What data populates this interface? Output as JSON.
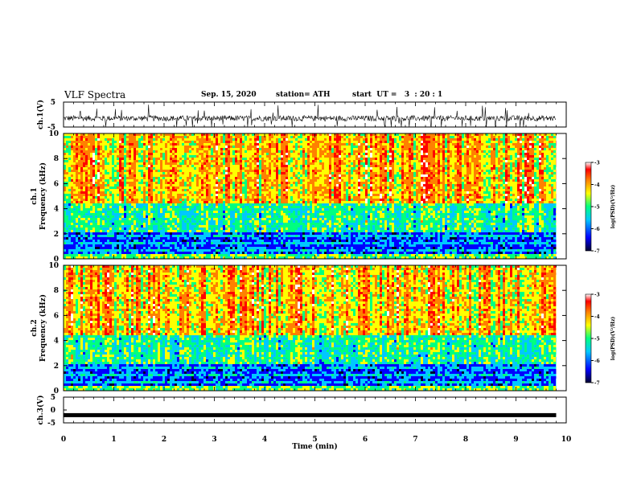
{
  "header": {
    "title": "VLF Spectra",
    "date": "Sep. 15, 2020",
    "station": "station= ATH",
    "start": "start  UT =   3  : 20 : 1"
  },
  "colors": {
    "palette": [
      "#00002e",
      "#0000ff",
      "#00c8ff",
      "#00ff80",
      "#ffff00",
      "#ff8000",
      "#ff0000",
      "#ffffff"
    ],
    "waveform": "#000000"
  },
  "chart_data": [
    {
      "type": "line",
      "panel": "ch1-waveform",
      "ylabel": "ch.1(V)",
      "yticks": [
        "5",
        "-5"
      ],
      "ylim": [
        -5,
        5
      ],
      "xlim": [
        0,
        10
      ],
      "description_of_series": "noisy waveform centered near -1.5 V with spikes",
      "center": -1.5
    },
    {
      "type": "heatmap",
      "panel": "ch1-spectrogram",
      "ylabel": "ch.1\nFrequency  (kHz)",
      "yticks": [
        "0",
        "2",
        "4",
        "6",
        "8",
        "10"
      ],
      "ylim": [
        0,
        10
      ],
      "xlim": [
        0,
        9.8
      ],
      "colorbar": {
        "label": "log(PSD)(V²/Hz)",
        "ticks": [
          "-3",
          "-4",
          "-5",
          "-6",
          "-7"
        ],
        "range": [
          -7,
          -3
        ]
      }
    },
    {
      "type": "heatmap",
      "panel": "ch2-spectrogram",
      "ylabel": "ch.2\nFrequency  (kHz)",
      "yticks": [
        "0",
        "2",
        "4",
        "6",
        "8",
        "10"
      ],
      "ylim": [
        0,
        10
      ],
      "xlim": [
        0,
        9.8
      ],
      "colorbar": {
        "label": "log(PSD)(V²/Hz)",
        "ticks": [
          "-3",
          "-4",
          "-5",
          "-6",
          "-7"
        ],
        "range": [
          -7,
          -3
        ]
      }
    },
    {
      "type": "line",
      "panel": "ch3-waveform",
      "ylabel": "ch.3(V)",
      "yticks": [
        "5",
        "0",
        "-5"
      ],
      "ylim": [
        -5,
        5
      ],
      "xlim": [
        0,
        10
      ],
      "center": -2
    }
  ],
  "xaxis": {
    "label": "Time  (min)",
    "ticks": [
      "0",
      "1",
      "2",
      "3",
      "4",
      "5",
      "6",
      "7",
      "8",
      "9",
      "10"
    ],
    "range": [
      0,
      10
    ]
  }
}
